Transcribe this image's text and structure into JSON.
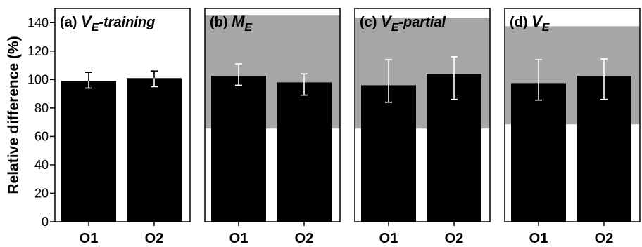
{
  "chart_data": {
    "type": "bar",
    "ylabel": "Relative difference (%)",
    "ylim": [
      0,
      150
    ],
    "yticks": [
      0,
      20,
      40,
      60,
      80,
      100,
      120,
      140
    ],
    "categories": [
      "O1",
      "O2"
    ],
    "colors": {
      "bar": "#000000",
      "band": "#a6a6a6",
      "error": "#ffffff"
    },
    "panels": [
      {
        "label": "(a)",
        "title_main": "V",
        "title_sub": "E",
        "title_rest": "-training",
        "values": [
          99,
          101
        ],
        "errors": [
          [
            94,
            105
          ],
          [
            95,
            106
          ]
        ],
        "band": null
      },
      {
        "label": "(b)",
        "title_main": "M",
        "title_sub": "E",
        "title_rest": "",
        "values": [
          102.5,
          98
        ],
        "errors": [
          [
            96,
            111
          ],
          [
            89,
            104
          ]
        ],
        "band": [
          65.5,
          145
        ]
      },
      {
        "label": "(c)",
        "title_main": "V",
        "title_sub": "E",
        "title_rest": "-partial",
        "values": [
          96,
          104
        ],
        "errors": [
          [
            84,
            114
          ],
          [
            86,
            116
          ]
        ],
        "band": [
          65.5,
          143.5
        ]
      },
      {
        "label": "(d)",
        "title_main": "V",
        "title_sub": "E",
        "title_rest": "",
        "values": [
          97.5,
          102.5
        ],
        "errors": [
          [
            85.5,
            114
          ],
          [
            86,
            114.5
          ]
        ],
        "band": [
          68.5,
          137.5
        ]
      }
    ]
  }
}
